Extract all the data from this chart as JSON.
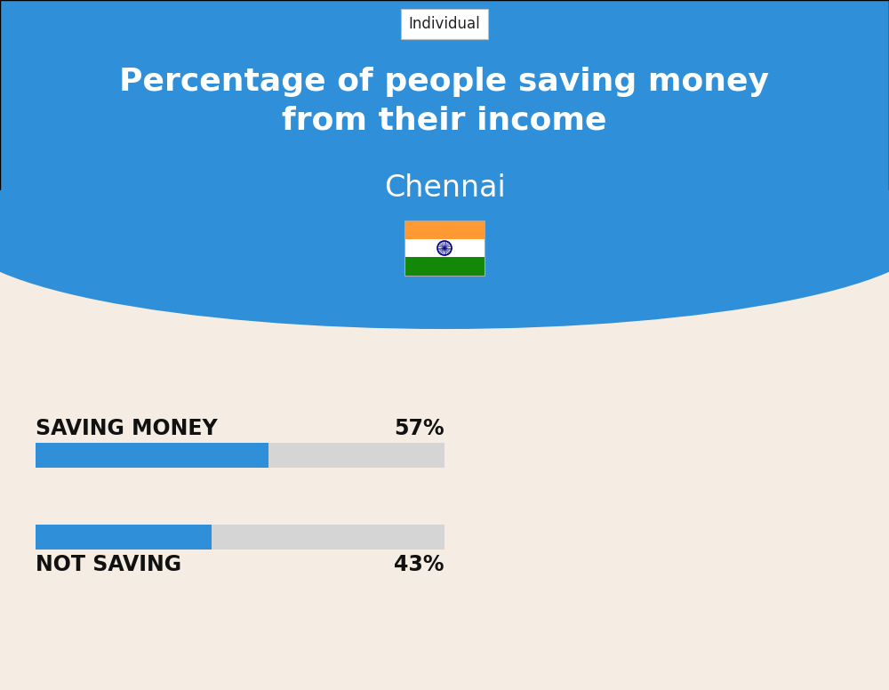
{
  "title_line1": "Percentage of people saving money",
  "title_line2": "from their income",
  "city": "Chennai",
  "tab_label": "Individual",
  "bar1_label": "SAVING MONEY",
  "bar1_value": 57,
  "bar1_pct": "57%",
  "bar2_label": "NOT SAVING",
  "bar2_value": 43,
  "bar2_pct": "43%",
  "bar_filled_color": "#2F8FD8",
  "bar_bg_color": "#d5d5d5",
  "bg_color_top": "#2F8FD8",
  "bg_color_bottom": "#f5ede3",
  "title_color": "#ffffff",
  "city_color": "#ffffff",
  "label_color": "#111111",
  "tab_bg": "#ffffff",
  "tab_text": "#222222",
  "label_fontsize": 17,
  "pct_fontsize": 17,
  "title_fontsize": 26,
  "city_fontsize": 24
}
